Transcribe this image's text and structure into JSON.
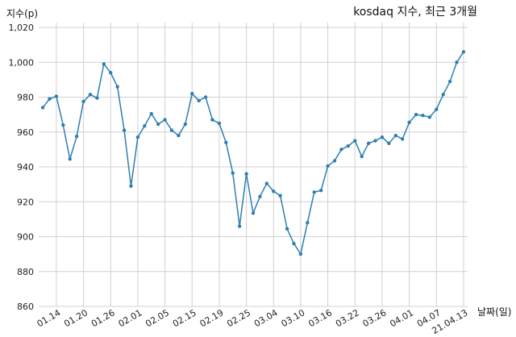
{
  "chart_data": {
    "type": "line",
    "title": "kosdaq 지수, 최근 3개월",
    "ylabel": "지수(p)",
    "xlabel": "날짜(일)",
    "ylim": [
      860,
      1020
    ],
    "yticks": [
      860,
      880,
      900,
      920,
      940,
      960,
      980,
      1000,
      1020
    ],
    "xticks": [
      {
        "x": 3,
        "label": "01.14"
      },
      {
        "x": 7,
        "label": "01.20"
      },
      {
        "x": 11,
        "label": "01.26"
      },
      {
        "x": 15,
        "label": "02.01"
      },
      {
        "x": 19,
        "label": "02.05"
      },
      {
        "x": 23,
        "label": "02.15"
      },
      {
        "x": 27,
        "label": "02.19"
      },
      {
        "x": 31,
        "label": "02.25"
      },
      {
        "x": 35,
        "label": "03.04"
      },
      {
        "x": 39,
        "label": "03.10"
      },
      {
        "x": 43,
        "label": "03.16"
      },
      {
        "x": 47,
        "label": "03.22"
      },
      {
        "x": 51,
        "label": "03.26"
      },
      {
        "x": 55,
        "label": "04.01"
      },
      {
        "x": 59,
        "label": "04.07"
      },
      {
        "x": 63,
        "label": "21.04.13"
      }
    ],
    "grid": true,
    "series": [
      {
        "color": "#2e7fb0",
        "values": [
          974,
          979,
          980.5,
          964,
          944.5,
          957.5,
          977.5,
          981.5,
          979.5,
          999,
          994,
          986,
          961,
          929,
          957,
          963.5,
          970.5,
          964.5,
          967,
          961,
          958,
          964.5,
          982,
          978,
          980,
          967,
          965,
          954,
          936.5,
          906,
          936,
          913.5,
          923,
          930.5,
          926,
          923.5,
          904.5,
          896,
          890,
          908,
          925.5,
          926.5,
          940.5,
          943.5,
          950,
          952,
          955,
          946,
          953.5,
          955,
          957,
          953.5,
          958,
          956,
          965.5,
          970,
          969.5,
          968.5,
          973,
          981.5,
          989,
          1000,
          1006
        ]
      }
    ]
  }
}
